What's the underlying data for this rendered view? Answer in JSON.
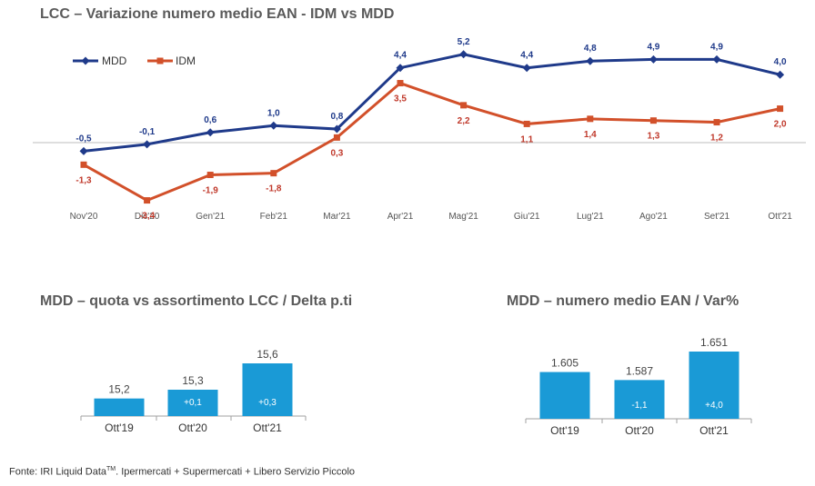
{
  "titles": {
    "main": "LCC – Variazione numero medio EAN - IDM vs MDD",
    "quota": "MDD – quota vs assortimento LCC / Delta p.ti",
    "ean": "MDD – numero medio EAN / Var%"
  },
  "source": {
    "prefix": "Fonte: IRI Liquid Data",
    "sup": "TM",
    "suffix": ". Ipermercati + Supermercati + Libero Servizio Piccolo"
  },
  "colors": {
    "mdd": "#1f3a8a",
    "idm": "#d2502a",
    "bar": "#1a9ad6"
  },
  "chart_data": [
    {
      "type": "line",
      "title": "LCC – Variazione numero medio EAN - IDM vs MDD",
      "categories": [
        "Nov'20",
        "Dic'20",
        "Gen'21",
        "Feb'21",
        "Mar'21",
        "Apr'21",
        "Mag'21",
        "Giu'21",
        "Lug'21",
        "Ago'21",
        "Set'21",
        "Ott'21"
      ],
      "series": [
        {
          "name": "MDD",
          "values": [
            -0.5,
            -0.1,
            0.6,
            1.0,
            0.8,
            4.4,
            5.2,
            4.4,
            4.8,
            4.9,
            4.9,
            4.0
          ],
          "labels": [
            "-0,5",
            "-0,1",
            "0,6",
            "1,0",
            "0,8",
            "4,4",
            "5,2",
            "4,4",
            "4,8",
            "4,9",
            "4,9",
            "4,0"
          ]
        },
        {
          "name": "IDM",
          "values": [
            -1.3,
            -3.4,
            -1.9,
            -1.8,
            0.3,
            3.5,
            2.2,
            1.1,
            1.4,
            1.3,
            1.2,
            2.0
          ],
          "labels": [
            "-1,3",
            "-3,4",
            "-1,9",
            "-1,8",
            "0,3",
            "3,5",
            "2,2",
            "1,1",
            "1,4",
            "1,3",
            "1,2",
            "2,0"
          ]
        }
      ],
      "legend": "top-left"
    },
    {
      "type": "bar",
      "title": "MDD – quota vs assortimento LCC / Delta p.ti",
      "categories": [
        "Ott'19",
        "Ott'20",
        "Ott'21"
      ],
      "values": [
        15.2,
        15.3,
        15.6
      ],
      "value_labels": [
        "15,2",
        "15,3",
        "15,6"
      ],
      "delta_labels": [
        "",
        "+0,1",
        "+0,3"
      ]
    },
    {
      "type": "bar",
      "title": "MDD – numero medio EAN / Var%",
      "categories": [
        "Ott'19",
        "Ott'20",
        "Ott'21"
      ],
      "values": [
        1605,
        1587,
        1651
      ],
      "value_labels": [
        "1.605",
        "1.587",
        "1.651"
      ],
      "delta_labels": [
        "",
        "-1,1",
        "+4,0"
      ]
    }
  ]
}
